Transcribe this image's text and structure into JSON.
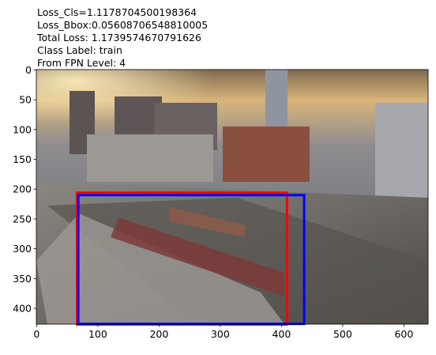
{
  "chart_data": {
    "type": "image",
    "title_lines": [
      "Loss_Cls=1.1178704500198364",
      "Loss_Bbox:0.05608706548810005",
      "Total Loss: 1.1739574670791626",
      "Class Label: train",
      "From FPN Level: 4"
    ],
    "xlim": [
      -0.5,
      639.5
    ],
    "ylim": [
      426.5,
      -0.5
    ],
    "xticks": [
      0,
      100,
      200,
      300,
      400,
      500,
      600
    ],
    "yticks": [
      0,
      50,
      100,
      150,
      200,
      250,
      300,
      350,
      400
    ],
    "boxes": [
      {
        "color": "#ff0000",
        "x0": 66,
        "y0": 206,
        "x1": 409,
        "y1": 427
      },
      {
        "color": "#0000ff",
        "x0": 68,
        "y0": 210,
        "x1": 437,
        "y1": 426
      }
    ]
  }
}
